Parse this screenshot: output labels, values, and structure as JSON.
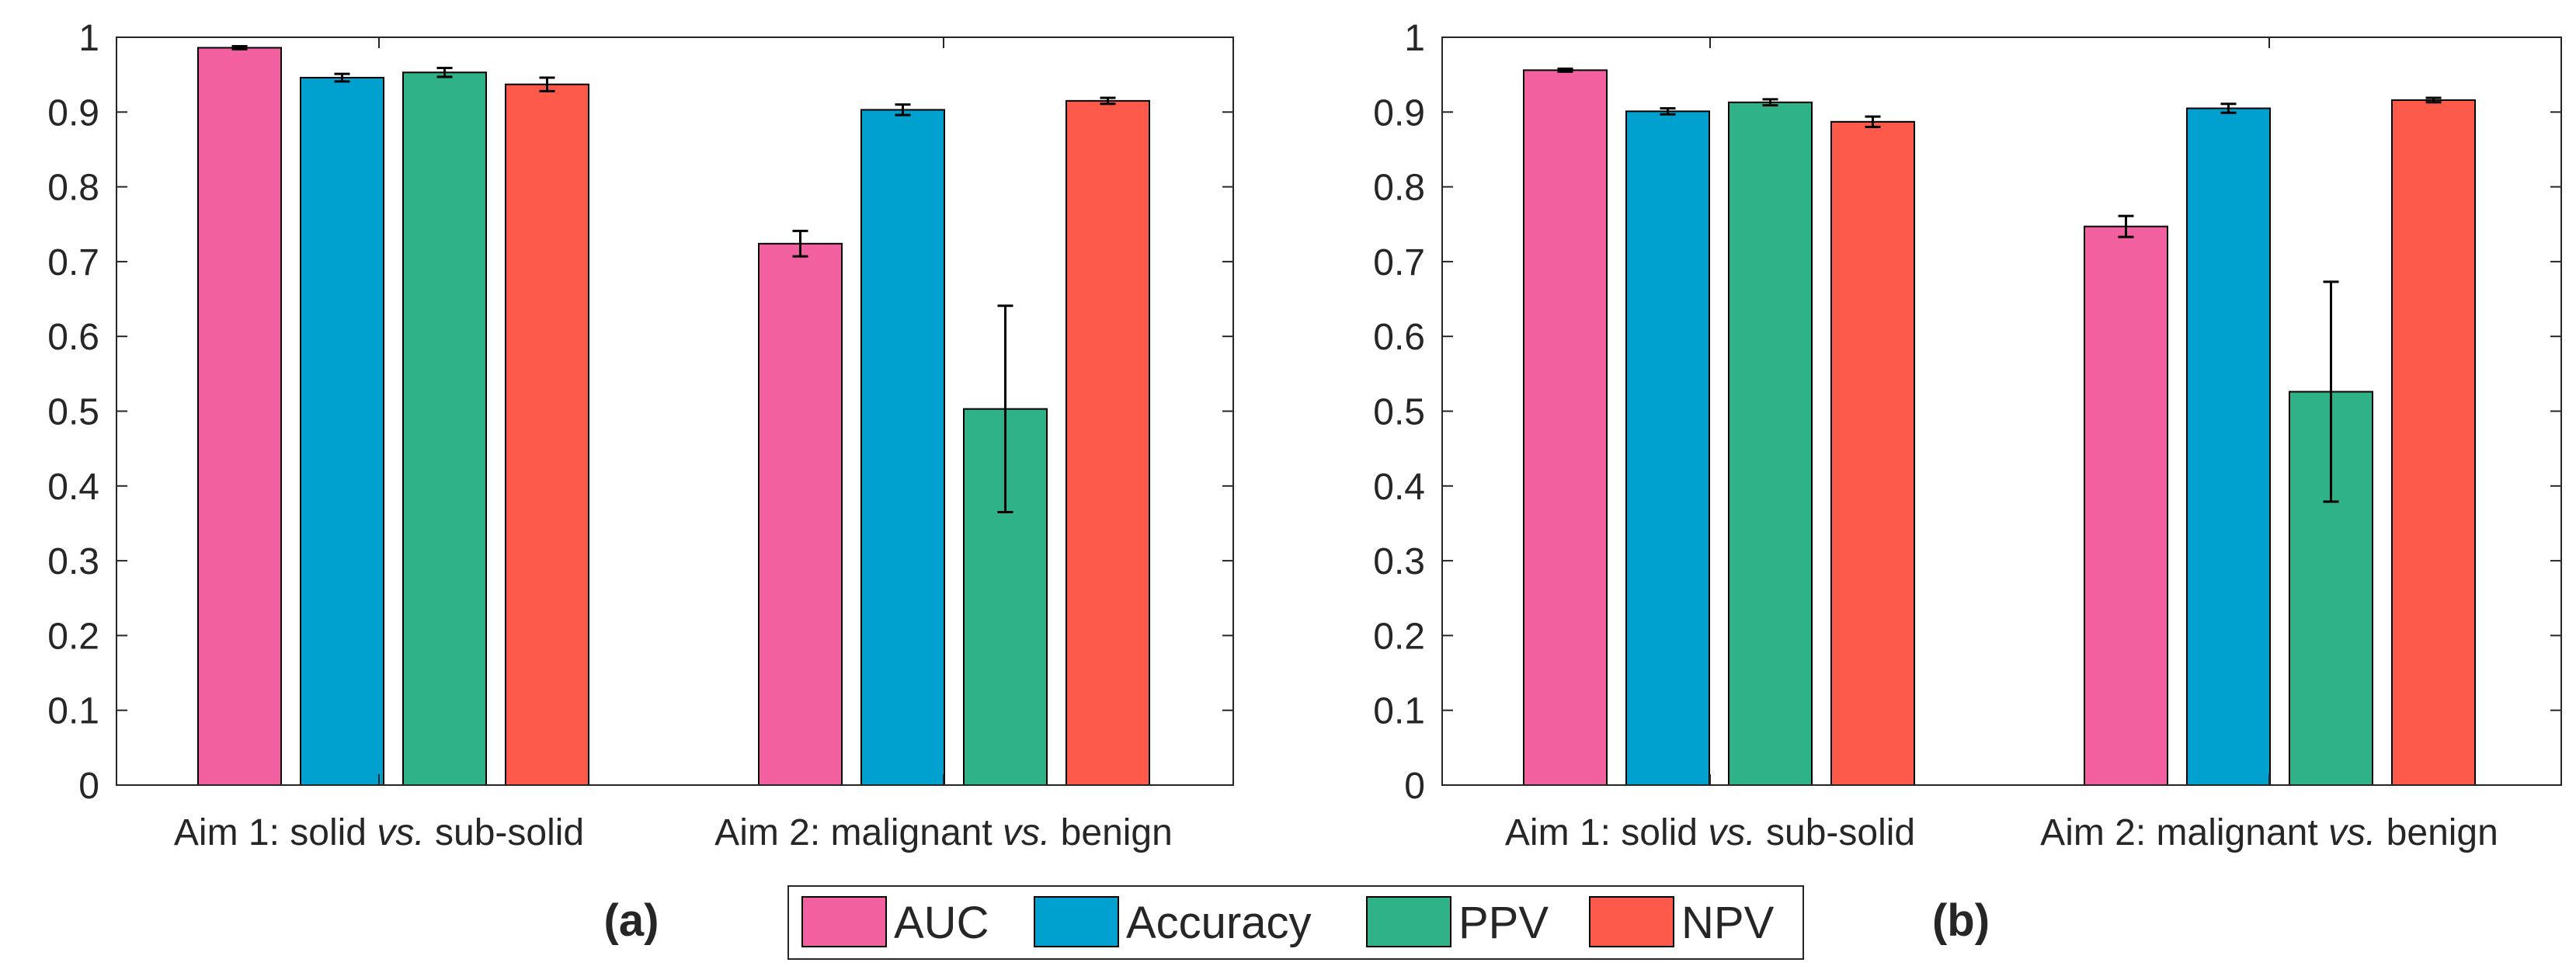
{
  "chart_data": [
    {
      "type": "bar",
      "panel_label": "(a)",
      "categories": [
        {
          "parts": [
            {
              "text": "Aim 1: solid ",
              "italic": false
            },
            {
              "text": "vs.",
              "italic": true
            },
            {
              "text": " sub-solid",
              "italic": false
            }
          ]
        },
        {
          "parts": [
            {
              "text": "Aim 2: malignant ",
              "italic": false
            },
            {
              "text": "vs.",
              "italic": true
            },
            {
              "text": " benign",
              "italic": false
            }
          ]
        }
      ],
      "series": [
        {
          "name": "AUC",
          "values": [
            0.986,
            0.724
          ],
          "errors": [
            0.002,
            0.017
          ]
        },
        {
          "name": "Accuracy",
          "values": [
            0.946,
            0.903
          ],
          "errors": [
            0.005,
            0.007
          ]
        },
        {
          "name": "PPV",
          "values": [
            0.953,
            0.503
          ],
          "errors": [
            0.006,
            0.138
          ]
        },
        {
          "name": "NPV",
          "values": [
            0.937,
            0.915
          ],
          "errors": [
            0.009,
            0.004
          ]
        }
      ],
      "ylim": [
        0,
        1
      ],
      "yticks": [
        "0",
        "0.1",
        "0.2",
        "0.3",
        "0.4",
        "0.5",
        "0.6",
        "0.7",
        "0.8",
        "0.9",
        "1"
      ],
      "grid": false
    },
    {
      "type": "bar",
      "panel_label": "(b)",
      "categories": [
        {
          "parts": [
            {
              "text": "Aim 1: solid ",
              "italic": false
            },
            {
              "text": "vs.",
              "italic": true
            },
            {
              "text": " sub-solid",
              "italic": false
            }
          ]
        },
        {
          "parts": [
            {
              "text": "Aim 2: malignant ",
              "italic": false
            },
            {
              "text": "vs.",
              "italic": true
            },
            {
              "text": " benign",
              "italic": false
            }
          ]
        }
      ],
      "series": [
        {
          "name": "AUC",
          "values": [
            0.956,
            0.747
          ],
          "errors": [
            0.002,
            0.014
          ]
        },
        {
          "name": "Accuracy",
          "values": [
            0.901,
            0.905
          ],
          "errors": [
            0.004,
            0.006
          ]
        },
        {
          "name": "PPV",
          "values": [
            0.913,
            0.526
          ],
          "errors": [
            0.004,
            0.147
          ]
        },
        {
          "name": "NPV",
          "values": [
            0.887,
            0.916
          ],
          "errors": [
            0.007,
            0.003
          ]
        }
      ],
      "ylim": [
        0,
        1
      ],
      "yticks": [
        "0",
        "0.1",
        "0.2",
        "0.3",
        "0.4",
        "0.5",
        "0.6",
        "0.7",
        "0.8",
        "0.9",
        "1"
      ],
      "grid": false
    }
  ],
  "legend": {
    "placement": "bottom-center",
    "entries": [
      {
        "label": "AUC",
        "color": "#f2609f"
      },
      {
        "label": "Accuracy",
        "color": "#00a0cf"
      },
      {
        "label": "PPV",
        "color": "#2fb288"
      },
      {
        "label": "NPV",
        "color": "#fd5a4c"
      }
    ]
  },
  "colors": {
    "AUC": "#f2609f",
    "Accuracy": "#00a0cf",
    "PPV": "#2fb288",
    "NPV": "#fd5a4c",
    "axis": "#262626"
  }
}
